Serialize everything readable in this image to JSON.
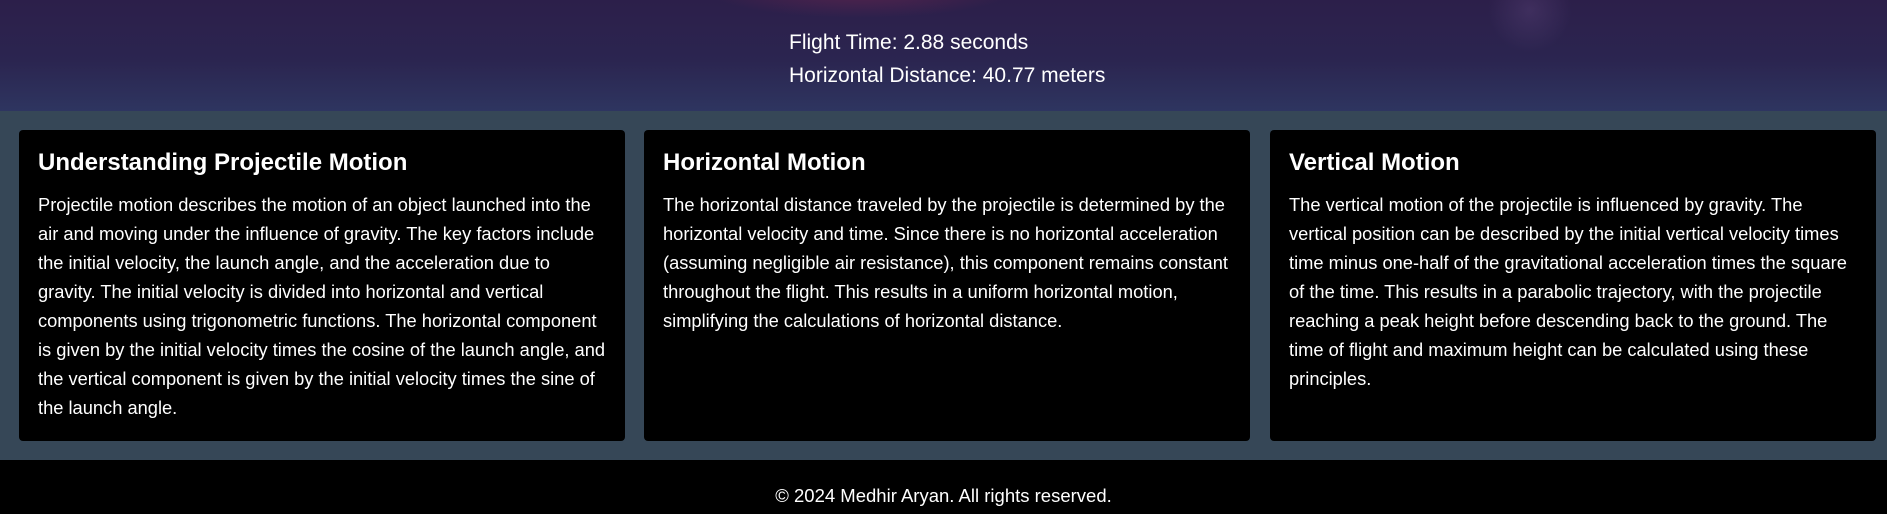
{
  "results": {
    "flight_time": "Flight Time: 2.88 seconds",
    "horizontal_distance": "Horizontal Distance: 40.77 meters"
  },
  "cards": [
    {
      "title": "Understanding Projectile Motion",
      "body": "Projectile motion describes the motion of an object launched into the air and moving under the influence of gravity. The key factors include the initial velocity, the launch angle, and the acceleration due to gravity. The initial velocity is divided into horizontal and vertical components using trigonometric functions. The horizontal component is given by the initial velocity times the cosine of the launch angle, and the vertical component is given by the initial velocity times the sine of the launch angle."
    },
    {
      "title": "Horizontal Motion",
      "body": "The horizontal distance traveled by the projectile is determined by the horizontal velocity and time. Since there is no horizontal acceleration (assuming negligible air resistance), this component remains constant throughout the flight. This results in a uniform horizontal motion, simplifying the calculations of horizontal distance."
    },
    {
      "title": "Vertical Motion",
      "body": "The vertical motion of the projectile is influenced by gravity. The vertical position can be described by the initial vertical velocity times time minus one-half of the gravitational acceleration times the square of the time. This results in a parabolic trajectory, with the projectile reaching a peak height before descending back to the ground. The time of flight and maximum height can be calculated using these principles."
    }
  ],
  "footer": {
    "copyright": "© 2024 Medhir Aryan. All rights reserved."
  },
  "colors": {
    "hero_background": "#2b2550",
    "section_background": "#364757",
    "card_background": "#000000",
    "text": "#ffffff"
  }
}
